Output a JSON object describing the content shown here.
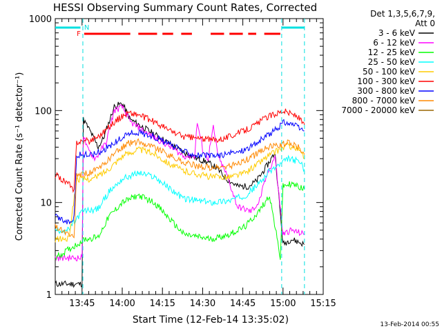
{
  "chart_data": {
    "type": "line",
    "title": "HESSI Observing Summary Count Rates, Corrected",
    "ylabel": "Corrected Count Rate (s⁻¹ detector⁻¹)",
    "xlabel": "Start Time (12-Feb-14 13:35:02)",
    "yscale": "log",
    "ylim": [
      1,
      1000
    ],
    "xlim_minutes_after_1335": [
      0,
      100
    ],
    "y_ticks": [
      {
        "value": 1,
        "label": "1"
      },
      {
        "value": 10,
        "label": "10"
      },
      {
        "value": 100,
        "label": "100"
      },
      {
        "value": 1000,
        "label": "1000"
      }
    ],
    "x_ticks": [
      {
        "value": 10,
        "label": "13:45"
      },
      {
        "value": 25,
        "label": "14:00"
      },
      {
        "value": 40,
        "label": "14:15"
      },
      {
        "value": 55,
        "label": "14:30"
      },
      {
        "value": 70,
        "label": "14:45"
      },
      {
        "value": 85,
        "label": "15:00"
      },
      {
        "value": 100,
        "label": "15:15"
      }
    ],
    "legend": {
      "placement": "right",
      "header": [
        "Det 1,3,5,6,7,9,",
        "Att 0"
      ]
    },
    "series": [
      {
        "name": "3 - 6 keV",
        "color": "#000000",
        "points": [
          [
            0,
            1.3
          ],
          [
            10,
            1.3
          ],
          [
            10.5,
            80
          ],
          [
            13,
            60
          ],
          [
            16,
            40
          ],
          [
            18,
            50
          ],
          [
            22,
            110
          ],
          [
            25,
            120
          ],
          [
            28,
            80
          ],
          [
            35,
            60
          ],
          [
            42,
            45
          ],
          [
            48,
            35
          ],
          [
            53,
            30
          ],
          [
            56,
            28
          ],
          [
            60,
            24
          ],
          [
            64,
            18
          ],
          [
            68,
            15
          ],
          [
            72,
            15
          ],
          [
            75,
            17
          ],
          [
            79,
            25
          ],
          [
            82,
            35
          ],
          [
            85,
            3.5
          ],
          [
            88,
            4
          ],
          [
            93,
            3.5
          ]
        ]
      },
      {
        "name": "6 - 12 keV",
        "color": "#ff00ff",
        "points": [
          [
            0,
            2.5
          ],
          [
            10,
            2.5
          ],
          [
            10.5,
            55
          ],
          [
            12,
            38
          ],
          [
            15,
            30
          ],
          [
            19,
            45
          ],
          [
            22,
            100
          ],
          [
            25,
            110
          ],
          [
            28,
            75
          ],
          [
            35,
            55
          ],
          [
            42,
            42
          ],
          [
            48,
            32
          ],
          [
            52,
            32
          ],
          [
            53,
            75
          ],
          [
            55,
            38
          ],
          [
            57,
            30
          ],
          [
            59,
            65
          ],
          [
            61,
            30
          ],
          [
            64,
            20
          ],
          [
            68,
            9
          ],
          [
            73,
            8
          ],
          [
            76,
            10
          ],
          [
            79,
            20
          ],
          [
            82,
            32
          ],
          [
            85,
            4.5
          ],
          [
            88,
            5
          ],
          [
            93,
            4.5
          ]
        ]
      },
      {
        "name": "12 - 25 keV",
        "color": "#00ff00",
        "points": [
          [
            0,
            2.5
          ],
          [
            10,
            3.8
          ],
          [
            11,
            4
          ],
          [
            16,
            4.2
          ],
          [
            20,
            7
          ],
          [
            25,
            10
          ],
          [
            31,
            12
          ],
          [
            37,
            10
          ],
          [
            44,
            6
          ],
          [
            48,
            4.5
          ],
          [
            58,
            4
          ],
          [
            65,
            4.5
          ],
          [
            71,
            5.5
          ],
          [
            76,
            8
          ],
          [
            80,
            12
          ],
          [
            84,
            2.5
          ],
          [
            85,
            15
          ],
          [
            88,
            16
          ],
          [
            93,
            14
          ]
        ]
      },
      {
        "name": "25 - 50 keV",
        "color": "#00ffff",
        "points": [
          [
            0,
            5
          ],
          [
            5,
            5
          ],
          [
            10,
            8
          ],
          [
            16,
            8.5
          ],
          [
            20,
            13
          ],
          [
            25,
            18
          ],
          [
            31,
            21
          ],
          [
            37,
            19
          ],
          [
            43,
            14
          ],
          [
            48,
            11
          ],
          [
            58,
            10
          ],
          [
            65,
            10.5
          ],
          [
            71,
            12
          ],
          [
            76,
            16
          ],
          [
            80,
            22
          ],
          [
            84,
            26
          ],
          [
            87,
            30
          ],
          [
            91,
            28
          ],
          [
            93,
            23
          ]
        ]
      },
      {
        "name": "50 - 100 keV",
        "color": "#ffcc00",
        "points": [
          [
            0,
            4
          ],
          [
            5,
            4
          ],
          [
            8,
            18
          ],
          [
            14,
            18
          ],
          [
            19,
            22
          ],
          [
            25,
            32
          ],
          [
            31,
            38
          ],
          [
            37,
            34
          ],
          [
            43,
            26
          ],
          [
            48,
            22
          ],
          [
            58,
            19
          ],
          [
            65,
            19
          ],
          [
            71,
            21
          ],
          [
            76,
            27
          ],
          [
            80,
            33
          ],
          [
            84,
            38
          ],
          [
            87,
            42
          ],
          [
            91,
            37
          ],
          [
            93,
            30
          ]
        ]
      },
      {
        "name": "100 - 300 keV",
        "color": "#ff0000",
        "points": [
          [
            0,
            20
          ],
          [
            5,
            16
          ],
          [
            7,
            13
          ],
          [
            8,
            46
          ],
          [
            13,
            47
          ],
          [
            17,
            55
          ],
          [
            22,
            75
          ],
          [
            27,
            95
          ],
          [
            31,
            90
          ],
          [
            37,
            75
          ],
          [
            43,
            60
          ],
          [
            48,
            52
          ],
          [
            53,
            50
          ],
          [
            58,
            48
          ],
          [
            63,
            50
          ],
          [
            69,
            58
          ],
          [
            74,
            68
          ],
          [
            79,
            85
          ],
          [
            85,
            100
          ],
          [
            90,
            88
          ],
          [
            93,
            70
          ]
        ]
      },
      {
        "name": "300 - 800 keV",
        "color": "#0000ff",
        "points": [
          [
            0,
            7
          ],
          [
            5,
            6
          ],
          [
            7,
            7
          ],
          [
            8,
            33
          ],
          [
            13,
            33
          ],
          [
            17,
            36
          ],
          [
            22,
            44
          ],
          [
            27,
            56
          ],
          [
            31,
            58
          ],
          [
            37,
            52
          ],
          [
            43,
            42
          ],
          [
            48,
            36
          ],
          [
            53,
            33
          ],
          [
            58,
            32
          ],
          [
            63,
            33
          ],
          [
            69,
            36
          ],
          [
            74,
            42
          ],
          [
            79,
            53
          ],
          [
            84,
            68
          ],
          [
            85,
            75
          ],
          [
            88,
            72
          ],
          [
            93,
            60
          ]
        ]
      },
      {
        "name": "800 - 7000 keV",
        "color": "#ff8800",
        "points": [
          [
            0,
            5.5
          ],
          [
            5,
            4.5
          ],
          [
            7,
            4
          ],
          [
            8,
            20
          ],
          [
            13,
            21
          ],
          [
            17,
            24
          ],
          [
            22,
            34
          ],
          [
            27,
            44
          ],
          [
            31,
            46
          ],
          [
            37,
            40
          ],
          [
            43,
            32
          ],
          [
            48,
            27
          ],
          [
            53,
            25
          ],
          [
            58,
            24
          ],
          [
            63,
            24
          ],
          [
            69,
            27
          ],
          [
            74,
            32
          ],
          [
            79,
            40
          ],
          [
            84,
            42
          ],
          [
            87,
            45
          ],
          [
            91,
            40
          ],
          [
            93,
            33
          ]
        ]
      },
      {
        "name": "7000 - 20000 keV",
        "color": "#996600",
        "points": []
      }
    ],
    "annotations": {
      "status_labels": [
        {
          "text": "F",
          "x": 9.5,
          "color": "#ff0000"
        },
        {
          "text": "N",
          "x": 10.8,
          "color": "#00e0e0"
        }
      ],
      "night_segments": [
        [
          0,
          9.4
        ],
        [
          84.5,
          93
        ]
      ],
      "flare_segments": [
        [
          10.8,
          28
        ],
        [
          31,
          38
        ],
        [
          40,
          44
        ],
        [
          47,
          51
        ],
        [
          58,
          63
        ],
        [
          65,
          70
        ],
        [
          72,
          75
        ],
        [
          78,
          84
        ]
      ],
      "saa_lines": [
        10.3,
        84.5,
        93
      ]
    },
    "timestamp": "13-Feb-2014 00:55"
  }
}
